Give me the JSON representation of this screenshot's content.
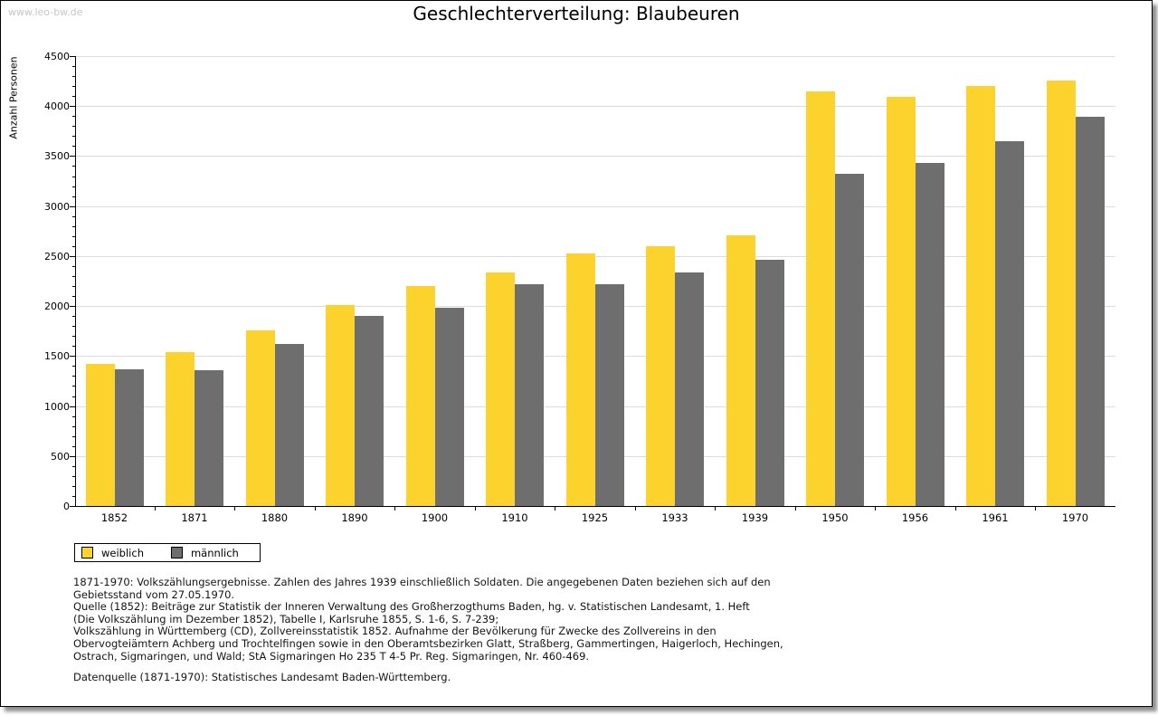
{
  "watermark": "www.leo-bw.de",
  "title": "Geschlechterverteilung: Blaubeuren",
  "colors": {
    "weiblich": "#FCD32D",
    "maennlich": "#6E6E6E",
    "gridline": "#DDDDDD",
    "axis": "#000000",
    "watermark": "#C6C6C6"
  },
  "chart_data": {
    "type": "bar",
    "title": "Geschlechterverteilung: Blaubeuren",
    "xlabel": "",
    "ylabel": "Anzahl Personen",
    "ylim": [
      0,
      4500
    ],
    "ytick_step": 500,
    "ytick_minor_step": 100,
    "grid": true,
    "legend_position": "bottom-left",
    "categories": [
      "1852",
      "1871",
      "1880",
      "1890",
      "1900",
      "1910",
      "1925",
      "1933",
      "1939",
      "1950",
      "1956",
      "1961",
      "1970"
    ],
    "series": [
      {
        "name": "weiblich",
        "color": "#FCD32D",
        "values": [
          1420,
          1540,
          1760,
          2010,
          2200,
          2340,
          2530,
          2600,
          2710,
          4150,
          4090,
          4200,
          4255
        ]
      },
      {
        "name": "männlich",
        "color": "#6E6E6E",
        "values": [
          1365,
          1355,
          1620,
          1900,
          1985,
          2220,
          2220,
          2340,
          2465,
          3320,
          3430,
          3650,
          3895
        ]
      }
    ]
  },
  "legend": {
    "items": [
      {
        "label": "weiblich",
        "color": "#FCD32D"
      },
      {
        "label": "männlich",
        "color": "#6E6E6E"
      }
    ]
  },
  "footnotes": [
    "1871-1970: Volkszählungsergebnisse. Zahlen des Jahres 1939 einschließlich Soldaten. Die angegebenen Daten beziehen sich auf den",
    "Gebietsstand vom 27.05.1970.",
    "Quelle (1852): Beiträge zur Statistik der Inneren Verwaltung des Großherzogthums Baden, hg. v. Statistischen Landesamt, 1. Heft",
    "(Die Volkszählung im Dezember 1852), Tabelle I, Karlsruhe 1855, S. 1-6, S. 7-239;",
    "Volkszählung in Württemberg (CD), Zollvereinsstatistik 1852. Aufnahme der Bevölkerung für Zwecke des Zollvereins in den",
    "Obervogteiämtern Achberg und Trochtelfingen sowie in den Oberamtsbezirken Glatt, Straßberg, Gammertingen, Haigerloch, Hechingen,",
    "Ostrach, Sigmaringen, und Wald; StA Sigmaringen Ho 235 T 4-5 Pr. Reg. Sigmaringen, Nr. 460-469."
  ],
  "datasource": "Datenquelle (1871-1970): Statistisches Landesamt Baden-Württemberg."
}
